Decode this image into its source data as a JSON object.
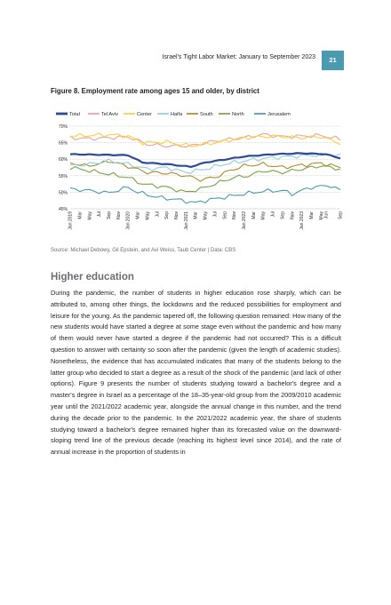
{
  "header": {
    "title": "Israel's Tight Labor Market: January to September 2023",
    "page_number": "21"
  },
  "figure": {
    "title": "Figure 8. Employment rate among ages 15 and older, by district",
    "source": "Source: Michael Debowy, Gil Epstein, and Avi Weiss, Taub Center | Data: CBS"
  },
  "chart_data": {
    "type": "line",
    "ylim": [
      45,
      70
    ],
    "y_ticks": [
      "45%",
      "50%",
      "55%",
      "60%",
      "65%",
      "70%"
    ],
    "y_tick_values": [
      45,
      50,
      55,
      60,
      65,
      70
    ],
    "x_ticks": [
      "Jan 2019",
      "Mar",
      "May",
      "Jul",
      "Sep",
      "Nov",
      "Jan 2020",
      "Mar",
      "May",
      "Jul",
      "Sep",
      "Nov",
      "Jan 2021",
      "Mar",
      "May",
      "Jul",
      "Sep",
      "Nov",
      "Jan 2022",
      "Mar",
      "May",
      "Jul",
      "Sep",
      "Nov",
      "Jan 2023",
      "Mar",
      "May",
      "Jun",
      "Sep"
    ],
    "x_tick_index": [
      0,
      2,
      4,
      6,
      8,
      10,
      12,
      14,
      16,
      18,
      20,
      22,
      24,
      26,
      28,
      30,
      32,
      34,
      36,
      38,
      40,
      42,
      44,
      46,
      48,
      50,
      52,
      53,
      56
    ],
    "n_months": 57,
    "legend_position": "top",
    "grid": "horizontal",
    "series": [
      {
        "name": "Total",
        "color": "#2e4a94",
        "width": 2.2,
        "anchors": [
          [
            0,
            61.5
          ],
          [
            12,
            61.2
          ],
          [
            15,
            59.0
          ],
          [
            20,
            58.5
          ],
          [
            25,
            57.7
          ],
          [
            28,
            59.0
          ],
          [
            36,
            60.8
          ],
          [
            42,
            61.5
          ],
          [
            48,
            61.8
          ],
          [
            53,
            61.5
          ],
          [
            56,
            60.3
          ]
        ]
      },
      {
        "name": "Tel Aviv",
        "color": "#f2a09a",
        "width": 1.1,
        "anchors": [
          [
            0,
            66.5
          ],
          [
            4,
            66.2
          ],
          [
            12,
            66.8
          ],
          [
            16,
            64.5
          ],
          [
            20,
            64.0
          ],
          [
            25,
            64.0
          ],
          [
            30,
            65.5
          ],
          [
            36,
            66.5
          ],
          [
            40,
            67.5
          ],
          [
            44,
            66.8
          ],
          [
            48,
            67.0
          ],
          [
            52,
            67.2
          ],
          [
            56,
            66.0
          ]
        ]
      },
      {
        "name": "Center",
        "color": "#f7d23e",
        "width": 1.1,
        "anchors": [
          [
            0,
            67.0
          ],
          [
            4,
            67.2
          ],
          [
            8,
            67.4
          ],
          [
            12,
            67.0
          ],
          [
            15,
            65.0
          ],
          [
            20,
            65.2
          ],
          [
            25,
            64.0
          ],
          [
            30,
            65.0
          ],
          [
            36,
            66.5
          ],
          [
            42,
            67.0
          ],
          [
            48,
            66.5
          ],
          [
            52,
            66.8
          ],
          [
            56,
            64.8
          ]
        ]
      },
      {
        "name": "Haifa",
        "color": "#8dcfe6",
        "width": 1.1,
        "anchors": [
          [
            0,
            58.0
          ],
          [
            4,
            58.5
          ],
          [
            8,
            59.5
          ],
          [
            12,
            58.5
          ],
          [
            16,
            57.0
          ],
          [
            20,
            57.5
          ],
          [
            24,
            56.0
          ],
          [
            28,
            57.0
          ],
          [
            32,
            58.5
          ],
          [
            36,
            59.5
          ],
          [
            42,
            60.5
          ],
          [
            48,
            61.0
          ],
          [
            54,
            61.5
          ],
          [
            56,
            61.0
          ]
        ]
      },
      {
        "name": "South",
        "color": "#b08a2a",
        "width": 1.1,
        "anchors": [
          [
            0,
            59.0
          ],
          [
            3,
            58.0
          ],
          [
            6,
            58.5
          ],
          [
            8,
            59.5
          ],
          [
            12,
            57.8
          ],
          [
            16,
            56.0
          ],
          [
            20,
            55.8
          ],
          [
            24,
            55.0
          ],
          [
            27,
            53.8
          ],
          [
            30,
            54.5
          ],
          [
            33,
            56.5
          ],
          [
            36,
            58.0
          ],
          [
            40,
            58.5
          ],
          [
            44,
            57.5
          ],
          [
            48,
            58.2
          ],
          [
            52,
            58.8
          ],
          [
            56,
            57.5
          ]
        ]
      },
      {
        "name": "North",
        "color": "#76a545",
        "width": 1.1,
        "anchors": [
          [
            0,
            57.5
          ],
          [
            4,
            56.5
          ],
          [
            8,
            55.5
          ],
          [
            12,
            54.5
          ],
          [
            15,
            52.5
          ],
          [
            20,
            51.5
          ],
          [
            24,
            50.0
          ],
          [
            27,
            51.0
          ],
          [
            30,
            52.5
          ],
          [
            34,
            54.5
          ],
          [
            37,
            55.0
          ],
          [
            40,
            56.5
          ],
          [
            44,
            56.0
          ],
          [
            48,
            57.0
          ],
          [
            52,
            58.0
          ],
          [
            56,
            57.0
          ]
        ]
      },
      {
        "name": "Jerusalem",
        "color": "#4a9bb1",
        "width": 1.1,
        "anchors": [
          [
            0,
            51.0
          ],
          [
            4,
            50.5
          ],
          [
            8,
            49.8
          ],
          [
            12,
            51.5
          ],
          [
            14,
            50.0
          ],
          [
            18,
            48.5
          ],
          [
            22,
            47.8
          ],
          [
            26,
            46.8
          ],
          [
            28,
            47.5
          ],
          [
            32,
            48.5
          ],
          [
            36,
            49.5
          ],
          [
            40,
            50.3
          ],
          [
            44,
            50.5
          ],
          [
            46,
            49.5
          ],
          [
            48,
            50.5
          ],
          [
            50,
            51.5
          ],
          [
            52,
            51.8
          ],
          [
            54,
            52.0
          ],
          [
            56,
            50.5
          ]
        ]
      }
    ]
  },
  "section": {
    "heading": "Higher education",
    "body": "During the pandemic, the number of students in higher education rose sharply, which can be attributed to, among other things, the lockdowns and the reduced possibilities for employment and leisure for the young. As the pandemic tapered off, the following question remained: How many of the new students would have started a degree at some stage even without the pandemic and how many of them would never have started a degree if the pandemic had not occurred? This is a difficult question to answer with certainty so soon after the pandemic (given the length of academic studies). Nonetheless, the evidence that has accumulated indicates that many of the students belong to the latter group who decided to start a degree as a result of the shock of the pandemic (and lack of other options). Figure 9 presents the number of students studying toward a bachelor's degree and a master's degree in Israel as a percentage of the 18–35-year-old group from the 2009/2010 academic year until the 2021/2022 academic year, alongside the annual change in this number, and the trend during the decade prior to the pandemic. In the 2021/2022 academic year, the share of students studying toward a bachelor's degree remained higher than its forecasted value on the downward-sloping trend line of the previous decade (reaching its highest level since 2014), and the rate of annual increase in the proportion of students in"
  }
}
